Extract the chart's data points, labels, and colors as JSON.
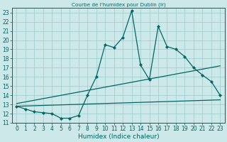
{
  "title": "Courbe de l'humidex pour Dublin (Ir)",
  "xlabel": "Humidex (Indice chaleur)",
  "background_color": "#cce8e8",
  "grid_color": "#99cccc",
  "line_color": "#006666",
  "xlim": [
    -0.5,
    23.5
  ],
  "ylim": [
    11,
    23.5
  ],
  "yticks": [
    11,
    12,
    13,
    14,
    15,
    16,
    17,
    18,
    19,
    20,
    21,
    22,
    23
  ],
  "xticks": [
    0,
    1,
    2,
    3,
    4,
    5,
    6,
    7,
    8,
    9,
    10,
    11,
    12,
    13,
    14,
    15,
    16,
    17,
    18,
    19,
    20,
    21,
    22,
    23
  ],
  "main_curve_x": [
    0,
    1,
    2,
    3,
    4,
    5,
    6,
    7,
    8,
    9,
    10,
    11,
    12,
    13,
    14,
    15,
    16,
    17,
    18,
    19,
    20,
    21,
    22,
    23
  ],
  "main_curve_y": [
    12.8,
    12.5,
    12.2,
    12.1,
    12.0,
    11.5,
    11.5,
    11.8,
    14.0,
    16.0,
    19.5,
    19.2,
    20.3,
    23.2,
    17.3,
    15.7,
    21.5,
    19.3,
    19.0,
    18.2,
    17.0,
    16.2,
    15.5,
    14.0
  ],
  "lower_line": [
    [
      0,
      12.8
    ],
    [
      23,
      13.5
    ]
  ],
  "upper_line": [
    [
      0,
      13.1
    ],
    [
      23,
      17.2
    ]
  ],
  "xlabel_fontsize": 6.5,
  "tick_fontsize": 5.5
}
